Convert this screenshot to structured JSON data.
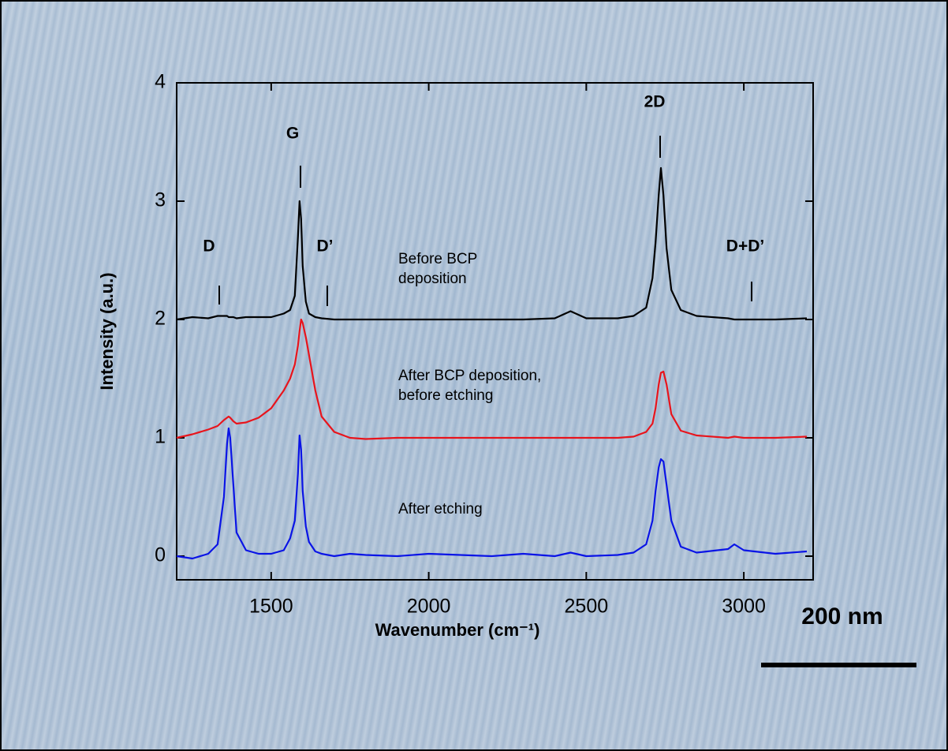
{
  "chart_data": {
    "type": "line",
    "x_label": "Wavenumber (cm⁻¹)",
    "y_label": "Intensity  (a.u.)",
    "xlim": [
      1200,
      3220
    ],
    "ylim": [
      -0.2,
      4
    ],
    "xticks": [
      1500,
      2000,
      2500,
      3000
    ],
    "yticks": [
      0,
      1,
      2,
      3,
      4
    ],
    "peak_labels": [
      "D",
      "G",
      "D’",
      "2D",
      "D+D’"
    ],
    "scale_bar": "200 nm",
    "x": [
      1200,
      1250,
      1300,
      1330,
      1350,
      1360,
      1365,
      1370,
      1380,
      1390,
      1420,
      1460,
      1500,
      1540,
      1560,
      1575,
      1585,
      1590,
      1595,
      1600,
      1610,
      1620,
      1640,
      1660,
      1700,
      1750,
      1800,
      1900,
      2000,
      2100,
      2200,
      2300,
      2400,
      2450,
      2500,
      2600,
      2650,
      2690,
      2710,
      2720,
      2730,
      2737,
      2745,
      2755,
      2770,
      2800,
      2850,
      2950,
      2970,
      3000,
      3100,
      3200
    ],
    "series": [
      {
        "name": "Before BCP deposition",
        "color": "#000000",
        "values": [
          2.0,
          2.02,
          2.01,
          2.03,
          2.03,
          2.03,
          2.02,
          2.02,
          2.02,
          2.01,
          2.02,
          2.02,
          2.02,
          2.05,
          2.08,
          2.2,
          2.7,
          3.0,
          2.85,
          2.45,
          2.15,
          2.05,
          2.02,
          2.01,
          2.0,
          2.0,
          2.0,
          2.0,
          2.0,
          2.0,
          2.0,
          2.0,
          2.01,
          2.07,
          2.01,
          2.01,
          2.03,
          2.1,
          2.35,
          2.65,
          3.05,
          3.28,
          3.05,
          2.6,
          2.25,
          2.08,
          2.03,
          2.01,
          2.0,
          2.0,
          2.0,
          2.01
        ]
      },
      {
        "name": "After BCP deposition, before etching",
        "color": "#e8141c",
        "values": [
          1.0,
          1.03,
          1.07,
          1.1,
          1.15,
          1.17,
          1.18,
          1.17,
          1.14,
          1.12,
          1.13,
          1.17,
          1.25,
          1.4,
          1.5,
          1.62,
          1.78,
          1.9,
          2.0,
          1.97,
          1.85,
          1.7,
          1.4,
          1.18,
          1.05,
          1.0,
          0.99,
          1.0,
          1.0,
          1.0,
          1.0,
          1.0,
          1.0,
          1.0,
          1.0,
          1.0,
          1.01,
          1.05,
          1.12,
          1.25,
          1.45,
          1.55,
          1.56,
          1.45,
          1.2,
          1.06,
          1.02,
          1.0,
          1.01,
          1.0,
          1.0,
          1.01
        ]
      },
      {
        "name": "After etching",
        "color": "#0a14e6",
        "values": [
          0.0,
          -0.02,
          0.02,
          0.1,
          0.5,
          0.95,
          1.08,
          1.0,
          0.6,
          0.2,
          0.05,
          0.02,
          0.02,
          0.05,
          0.15,
          0.3,
          0.7,
          1.02,
          0.9,
          0.55,
          0.25,
          0.12,
          0.04,
          0.02,
          0.0,
          0.02,
          0.01,
          0.0,
          0.02,
          0.01,
          0.0,
          0.02,
          0.0,
          0.03,
          0.0,
          0.01,
          0.03,
          0.1,
          0.3,
          0.55,
          0.75,
          0.82,
          0.8,
          0.6,
          0.3,
          0.08,
          0.03,
          0.06,
          0.1,
          0.05,
          0.02,
          0.04
        ]
      }
    ]
  }
}
